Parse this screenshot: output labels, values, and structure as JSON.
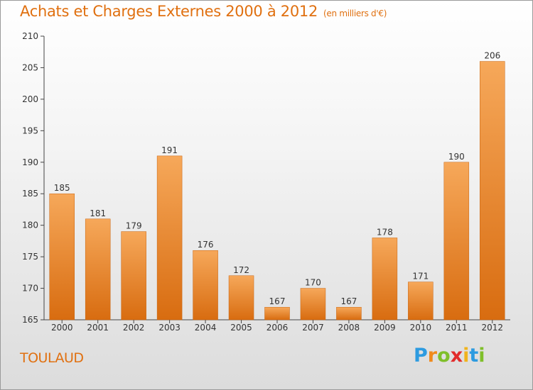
{
  "title": "Achats et Charges Externes 2000 à 2012",
  "unit": "(en milliers d'€)",
  "city": "TOULAUD",
  "logo": {
    "letters": [
      "P",
      "r",
      "o",
      "x",
      "i",
      "t",
      "i"
    ],
    "colors": [
      "#2d9be0",
      "#f08a1c",
      "#7fbf2a",
      "#e22b2b",
      "#f0b31c",
      "#2d9be0",
      "#7fbf2a"
    ]
  },
  "colors": {
    "accent": "#e07010",
    "bar_top": "#f6a85a",
    "bar_bottom": "#d86c10"
  },
  "chart_data": {
    "type": "bar",
    "categories": [
      "2000",
      "2001",
      "2002",
      "2003",
      "2004",
      "2005",
      "2006",
      "2007",
      "2008",
      "2009",
      "2010",
      "2011",
      "2012"
    ],
    "values": [
      185,
      181,
      179,
      191,
      176,
      172,
      167,
      170,
      167,
      178,
      171,
      190,
      206
    ],
    "data_labels": [
      "185",
      "181",
      "179",
      "191",
      "176",
      "172",
      "167",
      "170",
      "167",
      "178",
      "171",
      "190",
      "206"
    ],
    "yticks": [
      "165",
      "170",
      "175",
      "180",
      "185",
      "190",
      "195",
      "200",
      "205",
      "210"
    ],
    "ylim": [
      165,
      210
    ],
    "grid": false,
    "xlabel": "",
    "ylabel": ""
  }
}
